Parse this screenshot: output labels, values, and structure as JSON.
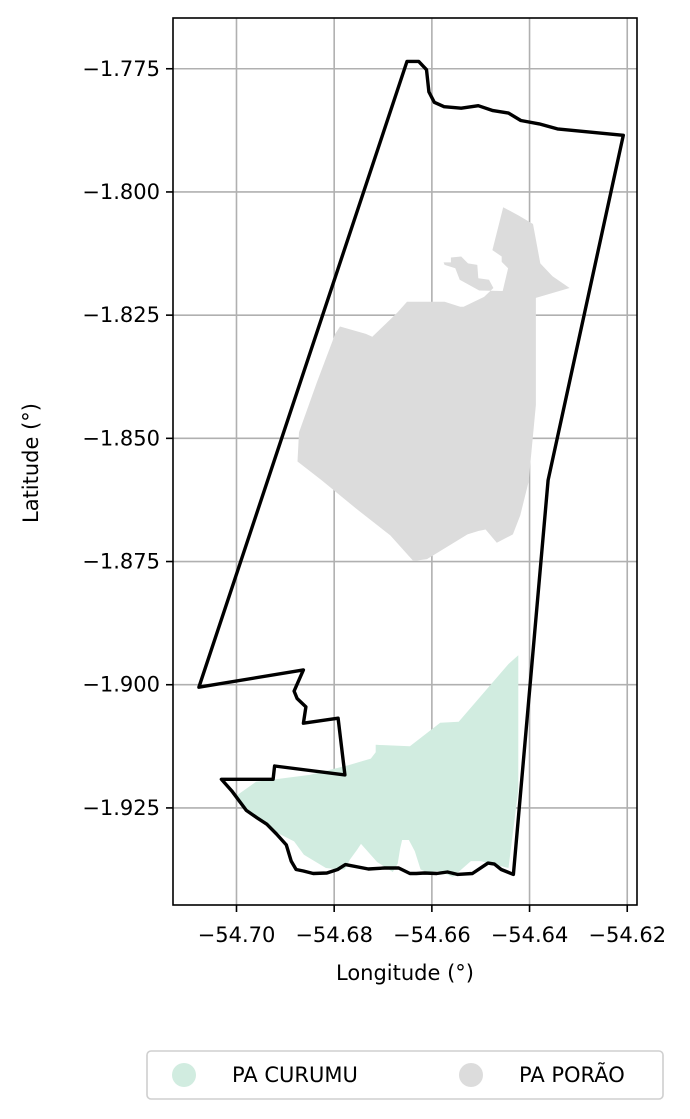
{
  "chart_data": {
    "type": "map",
    "xlabel": "Longitude (°)",
    "ylabel": "Latitude (°)",
    "xlim": [
      -54.713,
      -54.618
    ],
    "ylim": [
      -1.9447,
      -1.7647
    ],
    "grid": true,
    "x_ticks": [
      -54.7,
      -54.68,
      -54.66,
      -54.64,
      -54.62
    ],
    "x_tick_labels": [
      "−54.70",
      "−54.68",
      "−54.66",
      "−54.64",
      "−54.62"
    ],
    "y_ticks": [
      -1.775,
      -1.8,
      -1.825,
      -1.85,
      -1.875,
      -1.9,
      -1.925
    ],
    "y_tick_labels": [
      "−1.775",
      "−1.800",
      "−1.825",
      "−1.850",
      "−1.875",
      "−1.900",
      "−1.925"
    ],
    "legend_position": "bottom-center",
    "series": [
      {
        "name": "PA CURUMU",
        "color": "#d1ece0",
        "polygon": [
          [
            -54.7,
            -1.9225
          ],
          [
            -54.696,
            -1.9197
          ],
          [
            -54.685,
            -1.9183
          ],
          [
            -54.677,
            -1.9163
          ],
          [
            -54.6725,
            -1.915
          ],
          [
            -54.6715,
            -1.9137
          ],
          [
            -54.6715,
            -1.9122
          ],
          [
            -54.6645,
            -1.9125
          ],
          [
            -54.6583,
            -1.9077
          ],
          [
            -54.6545,
            -1.9075
          ],
          [
            -54.6443,
            -1.8958
          ],
          [
            -54.6423,
            -1.894
          ],
          [
            -54.6423,
            -1.9213
          ],
          [
            -54.6443,
            -1.9372
          ],
          [
            -54.65,
            -1.9358
          ],
          [
            -54.652,
            -1.9358
          ],
          [
            -54.6557,
            -1.939
          ],
          [
            -54.6587,
            -1.9378
          ],
          [
            -54.661,
            -1.938
          ],
          [
            -54.6623,
            -1.9375
          ],
          [
            -54.6635,
            -1.9338
          ],
          [
            -54.6647,
            -1.9315
          ],
          [
            -54.6661,
            -1.9315
          ],
          [
            -54.6665,
            -1.9333
          ],
          [
            -54.667,
            -1.9363
          ],
          [
            -54.668,
            -1.938
          ],
          [
            -54.6712,
            -1.936
          ],
          [
            -54.6745,
            -1.9323
          ],
          [
            -54.6753,
            -1.9335
          ],
          [
            -54.6768,
            -1.9355
          ],
          [
            -54.6778,
            -1.9375
          ],
          [
            -54.679,
            -1.9375
          ],
          [
            -54.6817,
            -1.9372
          ],
          [
            -54.6862,
            -1.9345
          ],
          [
            -54.6882,
            -1.9318
          ],
          [
            -54.6912,
            -1.9303
          ],
          [
            -54.6952,
            -1.9275
          ],
          [
            -54.6977,
            -1.9253
          ],
          [
            -54.6998,
            -1.9238
          ]
        ]
      },
      {
        "name": "PA PORÃO",
        "color": "#dcdcdc",
        "polygon": [
          [
            -54.6454,
            -1.8031
          ],
          [
            -54.6422,
            -1.8048
          ],
          [
            -54.6393,
            -1.8065
          ],
          [
            -54.6378,
            -1.8145
          ],
          [
            -54.6353,
            -1.8171
          ],
          [
            -54.6318,
            -1.8195
          ],
          [
            -54.6387,
            -1.8215
          ],
          [
            -54.6387,
            -1.8432
          ],
          [
            -54.6402,
            -1.8588
          ],
          [
            -54.6419,
            -1.8656
          ],
          [
            -54.6434,
            -1.8695
          ],
          [
            -54.6467,
            -1.8712
          ],
          [
            -54.649,
            -1.8685
          ],
          [
            -54.6505,
            -1.8688
          ],
          [
            -54.6527,
            -1.8695
          ],
          [
            -54.661,
            -1.8745
          ],
          [
            -54.6638,
            -1.8749
          ],
          [
            -54.6685,
            -1.8697
          ],
          [
            -54.6752,
            -1.8645
          ],
          [
            -54.6827,
            -1.8584
          ],
          [
            -54.6875,
            -1.8547
          ],
          [
            -54.6872,
            -1.8488
          ],
          [
            -54.6836,
            -1.8388
          ],
          [
            -54.6798,
            -1.8288
          ],
          [
            -54.6788,
            -1.8273
          ],
          [
            -54.6735,
            -1.8288
          ],
          [
            -54.6722,
            -1.8294
          ],
          [
            -54.6671,
            -1.8245
          ],
          [
            -54.6651,
            -1.8223
          ],
          [
            -54.6597,
            -1.8223
          ],
          [
            -54.6574,
            -1.8223
          ],
          [
            -54.6542,
            -1.8233
          ],
          [
            -54.6535,
            -1.8233
          ],
          [
            -54.6493,
            -1.8213
          ],
          [
            -54.6474,
            -1.8195
          ],
          [
            -54.6483,
            -1.8178
          ],
          [
            -54.6505,
            -1.8175
          ],
          [
            -54.6507,
            -1.8148
          ],
          [
            -54.6526,
            -1.8145
          ],
          [
            -54.654,
            -1.8131
          ],
          [
            -54.6561,
            -1.8133
          ],
          [
            -54.6561,
            -1.8143
          ],
          [
            -54.6576,
            -1.8143
          ],
          [
            -54.6574,
            -1.8148
          ],
          [
            -54.6552,
            -1.8155
          ],
          [
            -54.6543,
            -1.8178
          ],
          [
            -54.6503,
            -1.82
          ],
          [
            -54.6455,
            -1.8201
          ],
          [
            -54.6444,
            -1.8155
          ],
          [
            -54.6457,
            -1.8142
          ],
          [
            -54.6457,
            -1.8131
          ],
          [
            -54.6476,
            -1.8118
          ]
        ]
      }
    ],
    "boundary": [
      [
        -54.6651,
        -1.7735
      ],
      [
        -54.6627,
        -1.7735
      ],
      [
        -54.6611,
        -1.7752
      ],
      [
        -54.6606,
        -1.7797
      ],
      [
        -54.6595,
        -1.7818
      ],
      [
        -54.6575,
        -1.7827
      ],
      [
        -54.654,
        -1.783
      ],
      [
        -54.6505,
        -1.7825
      ],
      [
        -54.6475,
        -1.7835
      ],
      [
        -54.6443,
        -1.784
      ],
      [
        -54.6418,
        -1.7855
      ],
      [
        -54.638,
        -1.7862
      ],
      [
        -54.6343,
        -1.7872
      ],
      [
        -54.6208,
        -1.7885
      ],
      [
        -54.6362,
        -1.8585
      ],
      [
        -54.6433,
        -1.9385
      ],
      [
        -54.6458,
        -1.9375
      ],
      [
        -54.6472,
        -1.9364
      ],
      [
        -54.6485,
        -1.9362
      ],
      [
        -54.6517,
        -1.9383
      ],
      [
        -54.6548,
        -1.9385
      ],
      [
        -54.6568,
        -1.938
      ],
      [
        -54.659,
        -1.9383
      ],
      [
        -54.6615,
        -1.9382
      ],
      [
        -54.6632,
        -1.9383
      ],
      [
        -54.6645,
        -1.9383
      ],
      [
        -54.6668,
        -1.9372
      ],
      [
        -54.6697,
        -1.9372
      ],
      [
        -54.673,
        -1.9374
      ],
      [
        -54.6777,
        -1.9365
      ],
      [
        -54.6793,
        -1.9375
      ],
      [
        -54.6815,
        -1.9382
      ],
      [
        -54.6843,
        -1.9383
      ],
      [
        -54.6863,
        -1.9378
      ],
      [
        -54.6878,
        -1.9375
      ],
      [
        -54.6888,
        -1.9358
      ],
      [
        -54.6898,
        -1.9325
      ],
      [
        -54.6918,
        -1.9303
      ],
      [
        -54.6938,
        -1.9283
      ],
      [
        -54.6958,
        -1.927
      ],
      [
        -54.698,
        -1.9255
      ],
      [
        -54.701,
        -1.9215
      ],
      [
        -54.7031,
        -1.9192
      ],
      [
        -54.6925,
        -1.9192
      ],
      [
        -54.6922,
        -1.9165
      ],
      [
        -54.6778,
        -1.9183
      ],
      [
        -54.6792,
        -1.9068
      ],
      [
        -54.6863,
        -1.9078
      ],
      [
        -54.6858,
        -1.9045
      ],
      [
        -54.6876,
        -1.9028
      ],
      [
        -54.6882,
        -1.9013
      ],
      [
        -54.6863,
        -1.897
      ],
      [
        -54.7077,
        -1.9005
      ],
      [
        -54.6651,
        -1.7735
      ]
    ]
  }
}
